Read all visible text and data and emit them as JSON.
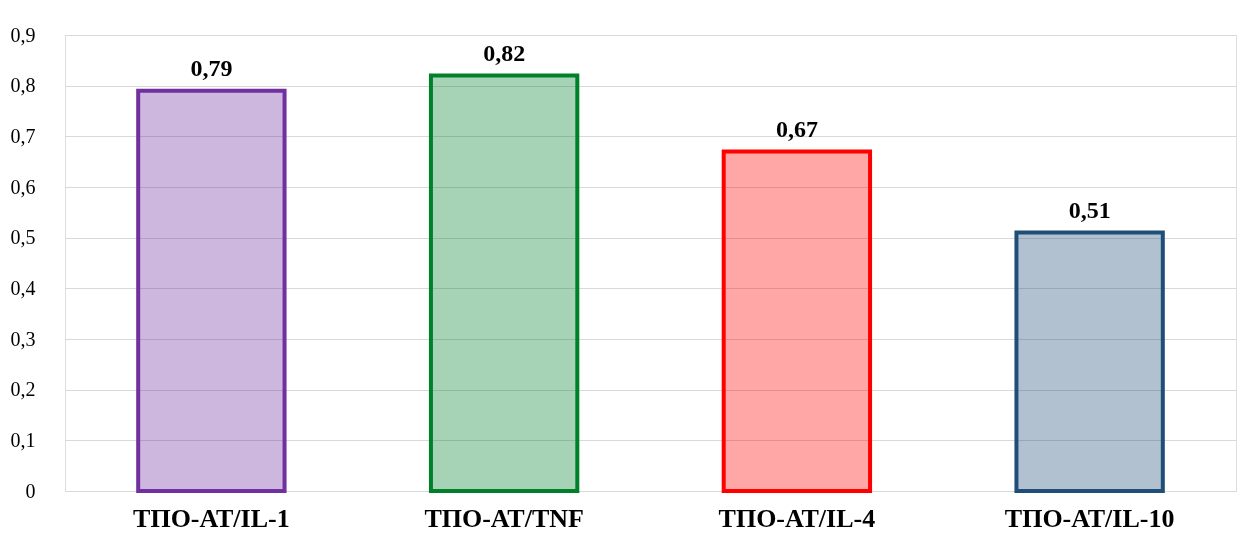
{
  "chart_data": {
    "type": "bar",
    "categories": [
      "ТПО-АТ/IL-1",
      "ТПО-АТ/TNF",
      "ТПО-АТ/IL-4",
      "ТПО-АТ/IL-10"
    ],
    "values": [
      0.79,
      0.82,
      0.67,
      0.51
    ],
    "colors": [
      "#7030a0",
      "#00802b",
      "#ff0000",
      "#1f4e79"
    ],
    "value_labels": [
      "0,79",
      "0,82",
      "0,67",
      "0,51"
    ],
    "ylim": [
      0,
      0.9
    ],
    "yticks": [
      0,
      {
        "value": 0.1,
        "label": "0,1"
      },
      {
        "value": 0.2,
        "label": "0,2"
      },
      {
        "value": 0.3,
        "label": "0,3"
      },
      {
        "value": 0.4,
        "label": "0,4"
      },
      {
        "value": 0.5,
        "label": "0,5"
      },
      {
        "value": 0.6,
        "label": "0,6"
      },
      {
        "value": 0.7,
        "label": "0,7"
      },
      {
        "value": 0.8,
        "label": "0,8"
      },
      {
        "value": 0.9,
        "label": "0,9"
      }
    ],
    "grid": "y",
    "legend": false
  }
}
